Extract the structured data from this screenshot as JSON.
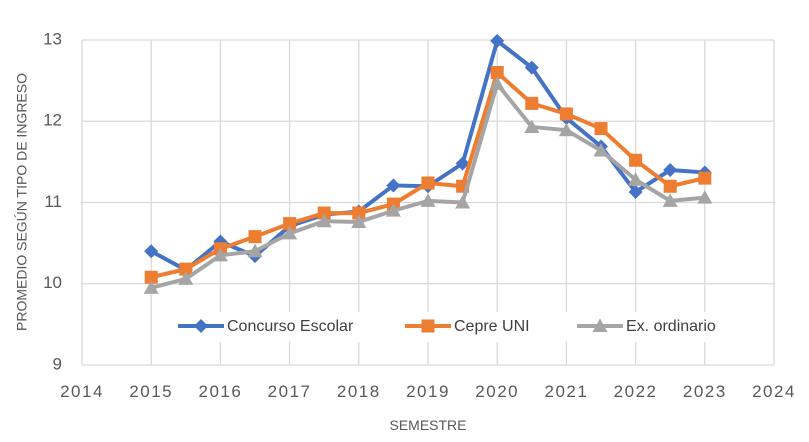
{
  "chart_data": {
    "type": "line",
    "title": "",
    "xlabel": "SEMESTRE",
    "ylabel": "PROMEDIO SEGÚN TIPO DE INGRESO",
    "xlim": [
      2014,
      2024
    ],
    "ylim": [
      9,
      13
    ],
    "x_ticks": [
      "2014",
      "2015",
      "2016",
      "2017",
      "2018",
      "2019",
      "2020",
      "2021",
      "2022",
      "2023",
      "2024"
    ],
    "y_ticks": [
      "9",
      "10",
      "11",
      "12",
      "13"
    ],
    "grid": true,
    "legend_position": "inside-bottom",
    "x": [
      2015,
      2015.5,
      2016,
      2016.5,
      2017,
      2017.5,
      2018,
      2018.5,
      2019,
      2019.5,
      2020,
      2020.5,
      2021,
      2021.5,
      2022,
      2022.5,
      2023
    ],
    "series": [
      {
        "name": "Concurso Escolar",
        "color": "#4472C4",
        "marker": "diamond",
        "values": [
          10.4,
          10.17,
          10.52,
          10.34,
          10.71,
          10.85,
          10.89,
          11.21,
          11.2,
          11.48,
          12.99,
          12.66,
          12.04,
          11.69,
          11.13,
          11.4,
          11.37
        ]
      },
      {
        "name": "Cepre UNI",
        "color": "#ED7D31",
        "marker": "square",
        "values": [
          10.08,
          10.18,
          10.43,
          10.58,
          10.74,
          10.87,
          10.87,
          10.98,
          11.24,
          11.2,
          12.6,
          12.22,
          12.09,
          11.91,
          11.52,
          11.2,
          11.3
        ]
      },
      {
        "name": "Ex. ordinario",
        "color": "#A5A5A5",
        "marker": "triangle",
        "values": [
          9.95,
          10.06,
          10.35,
          10.4,
          10.62,
          10.77,
          10.76,
          10.9,
          11.02,
          11.0,
          12.46,
          11.93,
          11.89,
          11.64,
          11.28,
          11.02,
          11.06
        ]
      }
    ]
  },
  "style": {
    "grid_color": "#D9D9D9",
    "text_color": "#595959"
  }
}
